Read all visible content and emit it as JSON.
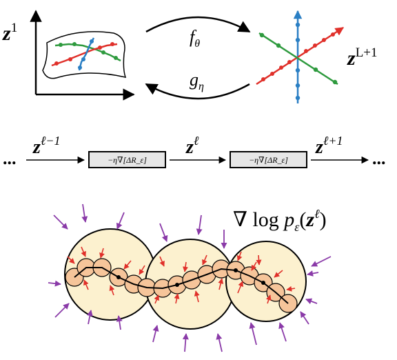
{
  "top": {
    "left_label": {
      "base": "z",
      "sup": "1"
    },
    "forward_label": {
      "base": "f",
      "sub": "θ"
    },
    "right_label": {
      "base": "z",
      "sup": "L+1"
    },
    "backward_label": {
      "base": "g",
      "sub": "η"
    }
  },
  "middle": {
    "start_ellipsis": "...",
    "label_1": {
      "base": "z",
      "sup": "ℓ−1"
    },
    "box_1": "−η∇[ΔR_ε]",
    "label_2": {
      "base": "z",
      "sup": "ℓ"
    },
    "box_2": "−η∇[ΔR_ε]",
    "label_3": {
      "base": "z",
      "sup": "ℓ+1"
    },
    "end_ellipsis": "..."
  },
  "bottom": {
    "score_label": {
      "prefix": "∇ log ",
      "p": "p",
      "sub": "ε",
      "open": "(",
      "base": "z",
      "sup": "ℓ",
      "close": ")"
    }
  }
}
